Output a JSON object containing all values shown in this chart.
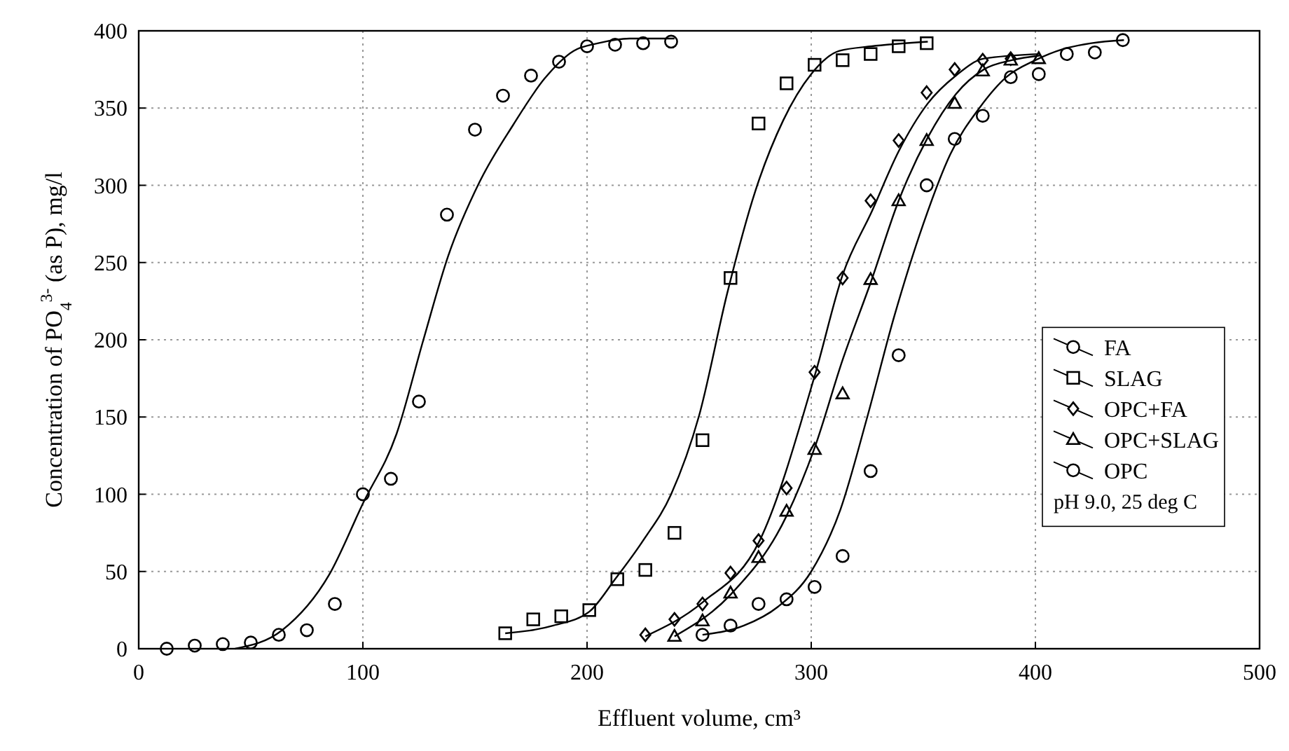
{
  "chart_data": {
    "type": "scatter",
    "xlabel": "Effluent volume, cm³",
    "ylabel": "Concentration of PO$_{4}$$^{3-}$ (as P), mg/l",
    "xlim": [
      0,
      500
    ],
    "ylim": [
      0,
      400
    ],
    "xticks": [
      0,
      100,
      200,
      300,
      400,
      500
    ],
    "yticks": [
      0,
      50,
      100,
      150,
      200,
      250,
      300,
      350,
      400
    ],
    "grid": true,
    "legend": "right",
    "annotations": [
      "pH 9.0, 25 deg C"
    ],
    "series": [
      {
        "name": "FA",
        "type": "scatter",
        "marker": "circle",
        "color": "#000000",
        "x": [
          12.5,
          25,
          37.5,
          50,
          62.5,
          75,
          87.5,
          100,
          112.5,
          125,
          137.5,
          150,
          162.5,
          175,
          187.5,
          200,
          212.5,
          225,
          237.5
        ],
        "values": [
          0,
          2,
          3,
          4,
          9,
          12,
          29,
          100,
          110,
          160,
          281,
          336,
          358,
          371,
          380,
          390,
          391,
          392,
          393
        ]
      },
      {
        "type": "line",
        "marker": "none",
        "color": "#000000",
        "x": [
          43,
          64,
          85,
          100,
          115,
          127,
          138,
          152,
          167,
          181,
          194,
          205,
          219,
          239
        ],
        "values": [
          0,
          12,
          48,
          94,
          139,
          200,
          254,
          302,
          339,
          369,
          387,
          392,
          395,
          395
        ]
      },
      {
        "name": "SLAG",
        "type": "scatter",
        "marker": "square",
        "color": "#000000",
        "x": [
          163.5,
          176,
          188.5,
          201,
          213.5,
          226,
          239,
          251.5,
          264,
          276.5,
          289,
          301.5,
          314,
          326.5,
          339,
          351.5
        ],
        "values": [
          10,
          19,
          21,
          25,
          45,
          51,
          75,
          135,
          240,
          340,
          366,
          378,
          381,
          385,
          390,
          392
        ]
      },
      {
        "type": "line",
        "marker": "none",
        "color": "#000000",
        "x": [
          163.5,
          185,
          201,
          212.5,
          225,
          237.5,
          250,
          262.5,
          275,
          287.5,
          300,
          312.5,
          327,
          352
        ],
        "values": [
          10,
          15,
          24,
          45,
          70,
          100,
          151,
          230,
          296,
          342,
          372,
          387,
          390,
          393
        ]
      },
      {
        "name": "OPC+FA",
        "type": "scatter",
        "marker": "diamond",
        "color": "#000000",
        "x": [
          226,
          239,
          251.5,
          264,
          276.5,
          289,
          301.5,
          314,
          326.5,
          339,
          351.5,
          364,
          376.5,
          389
        ],
        "values": [
          9,
          19,
          29,
          49,
          70,
          104,
          179,
          240,
          290,
          329,
          360,
          375,
          381,
          382
        ]
      },
      {
        "type": "line",
        "marker": "none",
        "color": "#000000",
        "x": [
          226,
          251.5,
          277,
          302,
          314,
          327,
          339,
          352,
          364.5,
          377,
          402
        ],
        "values": [
          8,
          30,
          70,
          179,
          242,
          283,
          322,
          353,
          371,
          382,
          385
        ]
      },
      {
        "name": "OPC+SLAG",
        "type": "scatter",
        "marker": "triangle",
        "color": "#000000",
        "x": [
          239,
          251.5,
          264,
          276.5,
          289,
          301.5,
          314,
          326.5,
          339,
          351.5,
          364,
          376.5,
          389,
          401.5
        ],
        "values": [
          8,
          18,
          36,
          59,
          89,
          129,
          165,
          239,
          290,
          329,
          353,
          374,
          381,
          382
        ]
      },
      {
        "type": "line",
        "marker": "none",
        "color": "#000000",
        "x": [
          239,
          264,
          289,
          301.5,
          314,
          327,
          339,
          352,
          364.5,
          377,
          389.5,
          402
        ],
        "values": [
          8,
          35,
          86,
          130,
          187,
          239,
          290,
          331,
          359,
          375,
          381,
          384
        ]
      },
      {
        "name": "OPC",
        "type": "scatter",
        "marker": "circle",
        "color": "#000000",
        "x": [
          251.5,
          264,
          276.5,
          289,
          301.5,
          314,
          326.5,
          339,
          351.5,
          364,
          376.5,
          389,
          401.5,
          414,
          426.5,
          439
        ],
        "values": [
          9,
          15,
          29,
          32,
          40,
          60,
          115,
          190,
          300,
          330,
          345,
          370,
          372,
          385,
          386,
          394
        ]
      },
      {
        "type": "line",
        "marker": "none",
        "color": "#000000",
        "x": [
          251.5,
          270,
          285,
          300,
          313,
          325,
          337,
          350,
          362,
          375,
          387,
          400,
          412,
          425,
          439.5
        ],
        "values": [
          9,
          15,
          27,
          50,
          90,
          150,
          215,
          275,
          320,
          350,
          370,
          381,
          388,
          392,
          394
        ]
      }
    ]
  }
}
